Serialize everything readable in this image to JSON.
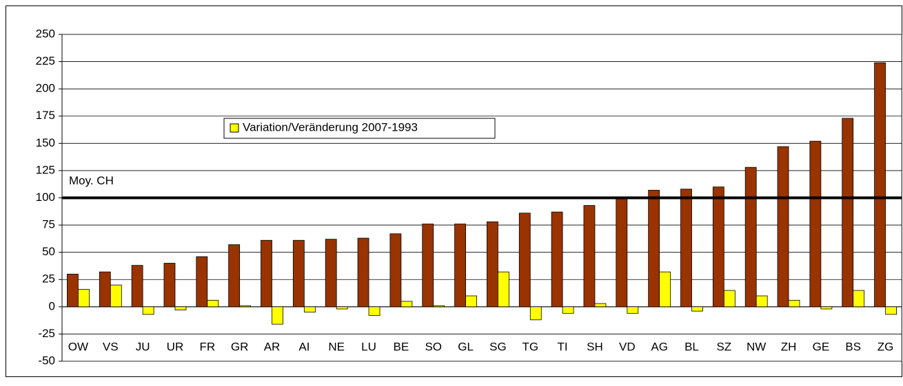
{
  "chart_data": {
    "type": "bar",
    "categories": [
      "OW",
      "VS",
      "JU",
      "UR",
      "FR",
      "GR",
      "AR",
      "AI",
      "NE",
      "LU",
      "BE",
      "SO",
      "GL",
      "SG",
      "TG",
      "TI",
      "SH",
      "VD",
      "AG",
      "BL",
      "SZ",
      "NW",
      "ZH",
      "GE",
      "BS",
      "ZG"
    ],
    "series": [
      {
        "color": "#993300",
        "values": [
          30,
          32,
          38,
          40,
          46,
          57,
          61,
          61,
          62,
          63,
          67,
          76,
          76,
          78,
          86,
          87,
          93,
          99,
          107,
          108,
          110,
          128,
          147,
          152,
          173,
          224
        ]
      },
      {
        "name": "Variation/Veränderung 2007-1993",
        "color": "#ffff00",
        "values": [
          16,
          20,
          -7,
          -3,
          6,
          1,
          -16,
          -5,
          -2,
          -8,
          5,
          1,
          10,
          32,
          -12,
          -6,
          3,
          -6,
          32,
          -4,
          15,
          10,
          6,
          -2,
          15,
          -7
        ]
      }
    ],
    "ylim": [
      -50,
      250
    ],
    "yticks": [
      -50,
      -25,
      0,
      25,
      50,
      75,
      100,
      125,
      150,
      175,
      200,
      225,
      250
    ],
    "grid": true,
    "reference_line": {
      "value": 100,
      "label": "Moy. CH"
    }
  }
}
